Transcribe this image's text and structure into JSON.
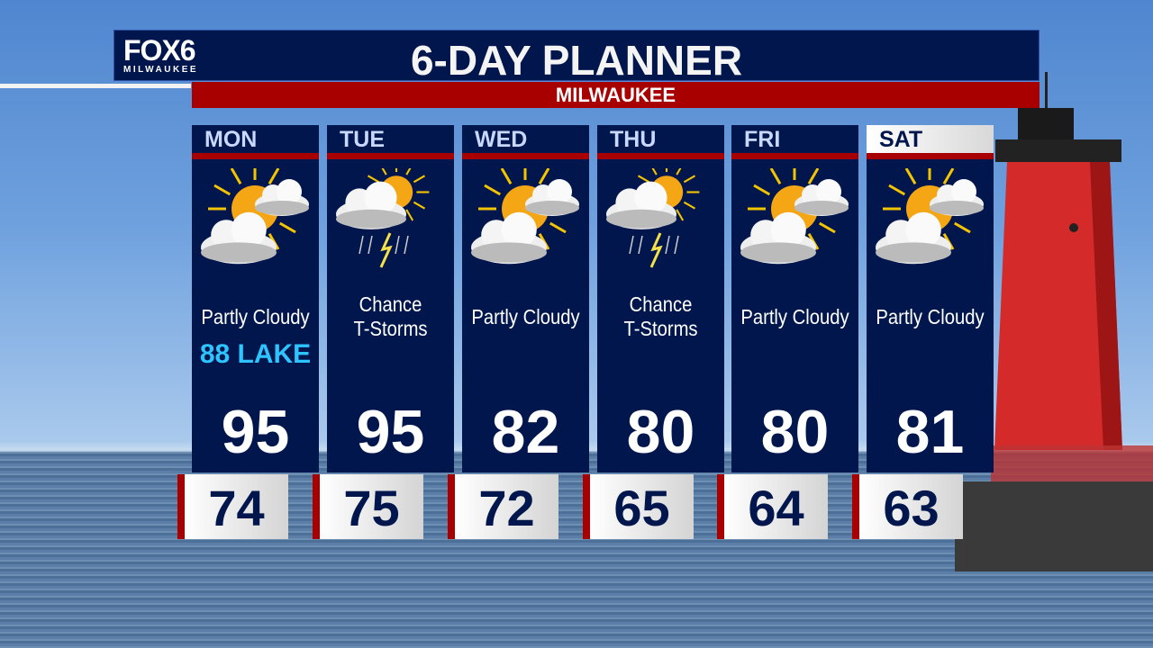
{
  "header": {
    "logo": "FOX6",
    "logo_sub": "MILWAUKEE",
    "title": "6-DAY PLANNER",
    "location": "MILWAUKEE"
  },
  "days": [
    {
      "day": "MON",
      "icon": "partly-cloudy-icon",
      "condition": "Partly Cloudy",
      "note": "88 LAKE",
      "high": "95",
      "low": "74"
    },
    {
      "day": "TUE",
      "icon": "thunderstorm-icon",
      "condition": "Chance T-Storms",
      "high": "95",
      "low": "75"
    },
    {
      "day": "WED",
      "icon": "partly-cloudy-icon",
      "condition": "Partly Cloudy",
      "high": "82",
      "low": "72"
    },
    {
      "day": "THU",
      "icon": "thunderstorm-icon",
      "condition": "Chance T-Storms",
      "high": "80",
      "low": "65"
    },
    {
      "day": "FRI",
      "icon": "partly-cloudy-icon",
      "condition": "Partly Cloudy",
      "high": "80",
      "low": "64"
    },
    {
      "day": "SAT",
      "icon": "partly-cloudy-icon",
      "condition": "Partly Cloudy",
      "high": "81",
      "low": "63"
    }
  ],
  "colors": {
    "navy": "#00164d",
    "red": "#a80000",
    "lake_text": "#2ec4ff"
  }
}
